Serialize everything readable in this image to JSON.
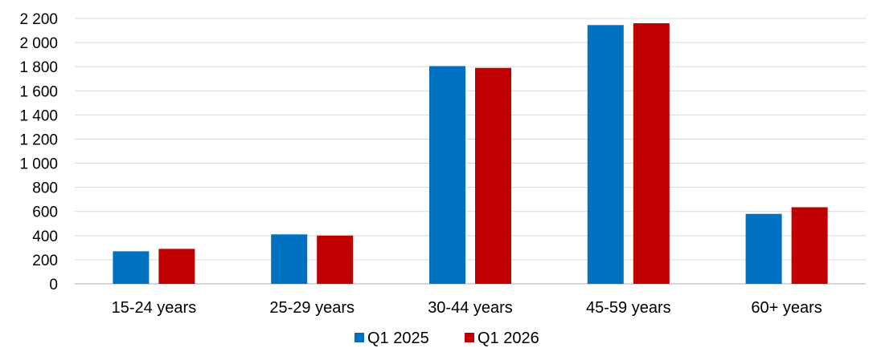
{
  "chart_data": {
    "type": "bar",
    "title": "",
    "xlabel": "",
    "ylabel": "",
    "categories": [
      "15-24 years",
      "25-29 years",
      "30-44 years",
      "45-59 years",
      "60+ years"
    ],
    "series": [
      {
        "name": "Q1 2025",
        "color": "#0070c0",
        "values": [
          270,
          410,
          1805,
          2145,
          580
        ]
      },
      {
        "name": "Q1 2026",
        "color": "#c00000",
        "values": [
          290,
          400,
          1790,
          2160,
          635
        ]
      }
    ],
    "ylim": [
      0,
      2200
    ],
    "yticks": [
      0,
      200,
      400,
      600,
      800,
      1000,
      1200,
      1400,
      1600,
      1800,
      2000,
      2200
    ],
    "ytick_labels": [
      "0",
      "200",
      "400",
      "600",
      "800",
      "1 000",
      "1 200",
      "1 400",
      "1 600",
      "1 800",
      "2 000",
      "2 200"
    ],
    "grid": true,
    "legend": "bottom-center"
  }
}
